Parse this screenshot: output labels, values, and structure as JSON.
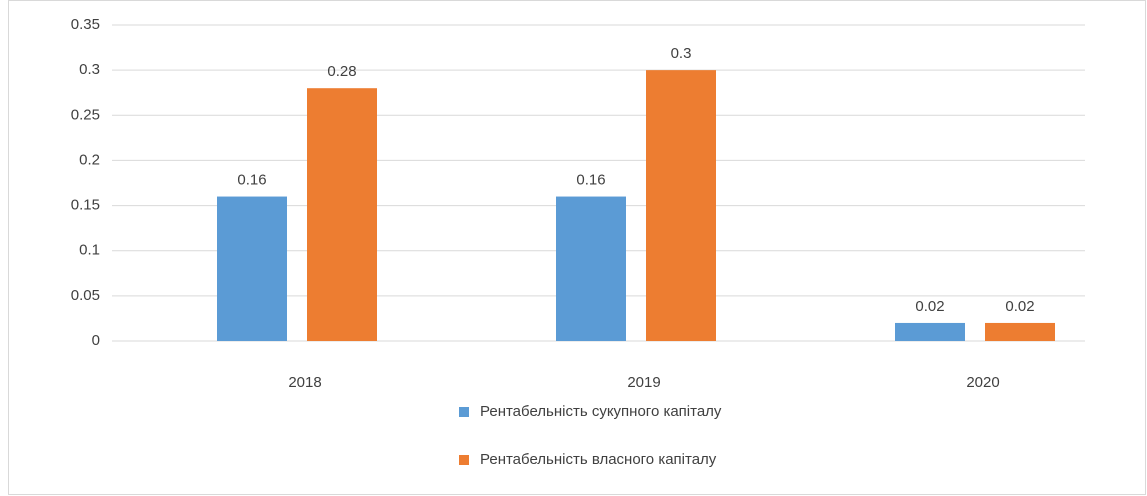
{
  "chart_data": {
    "type": "bar",
    "categories": [
      "2018",
      "2019",
      "2020"
    ],
    "series": [
      {
        "name": "Рентабельність сукупного капіталу",
        "color": "#5b9bd5",
        "values": [
          0.16,
          0.16,
          0.02
        ]
      },
      {
        "name": "Рентабельність власного капіталу",
        "color": "#ed7d31",
        "values": [
          0.28,
          0.3,
          0.02
        ]
      }
    ],
    "ylim": [
      0,
      0.35
    ],
    "yticks": [
      0,
      0.05,
      0.1,
      0.15,
      0.2,
      0.25,
      0.3,
      0.35
    ],
    "grid": true,
    "legend": "bottom"
  }
}
